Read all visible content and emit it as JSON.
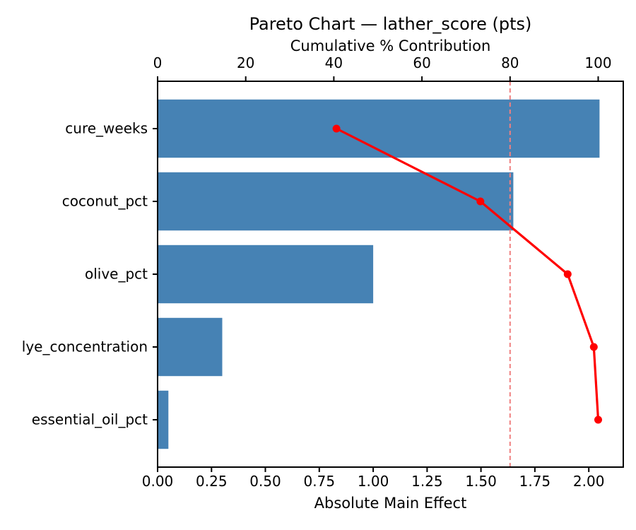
{
  "chart_data": {
    "type": "bar",
    "subtype": "pareto",
    "orientation": "horizontal",
    "title": "Pareto Chart — lather_score (pts)",
    "xlabel_top": "Cumulative % Contribution",
    "xlabel_bottom": "Absolute Main Effect",
    "categories": [
      "cure_weeks",
      "coconut_pct",
      "olive_pct",
      "lye_concentration",
      "essential_oil_pct"
    ],
    "series": [
      {
        "name": "Absolute Main Effect",
        "type": "bar",
        "axis": "bottom",
        "values": [
          2.05,
          1.65,
          1.0,
          0.3,
          0.05
        ]
      },
      {
        "name": "Cumulative % Contribution",
        "type": "line",
        "axis": "top",
        "values": [
          40.59,
          73.27,
          93.07,
          99.01,
          100.0
        ]
      }
    ],
    "threshold_pct": 80,
    "xlim_bottom": [
      0,
      2.16
    ],
    "xlim_top": [
      0,
      105.7
    ],
    "xticks_bottom": [
      "0.00",
      "0.25",
      "0.50",
      "0.75",
      "1.00",
      "1.25",
      "1.50",
      "1.75",
      "2.00"
    ],
    "xticks_top": [
      "0",
      "20",
      "40",
      "60",
      "80",
      "100"
    ],
    "grid": false,
    "legend": "none",
    "colors": {
      "bar": "#4682B4",
      "line": "#FF0000",
      "marker": "#FF0000",
      "threshold_line": "#F08080",
      "axis": "#000000",
      "text": "#000000",
      "background": "#FFFFFF"
    }
  }
}
